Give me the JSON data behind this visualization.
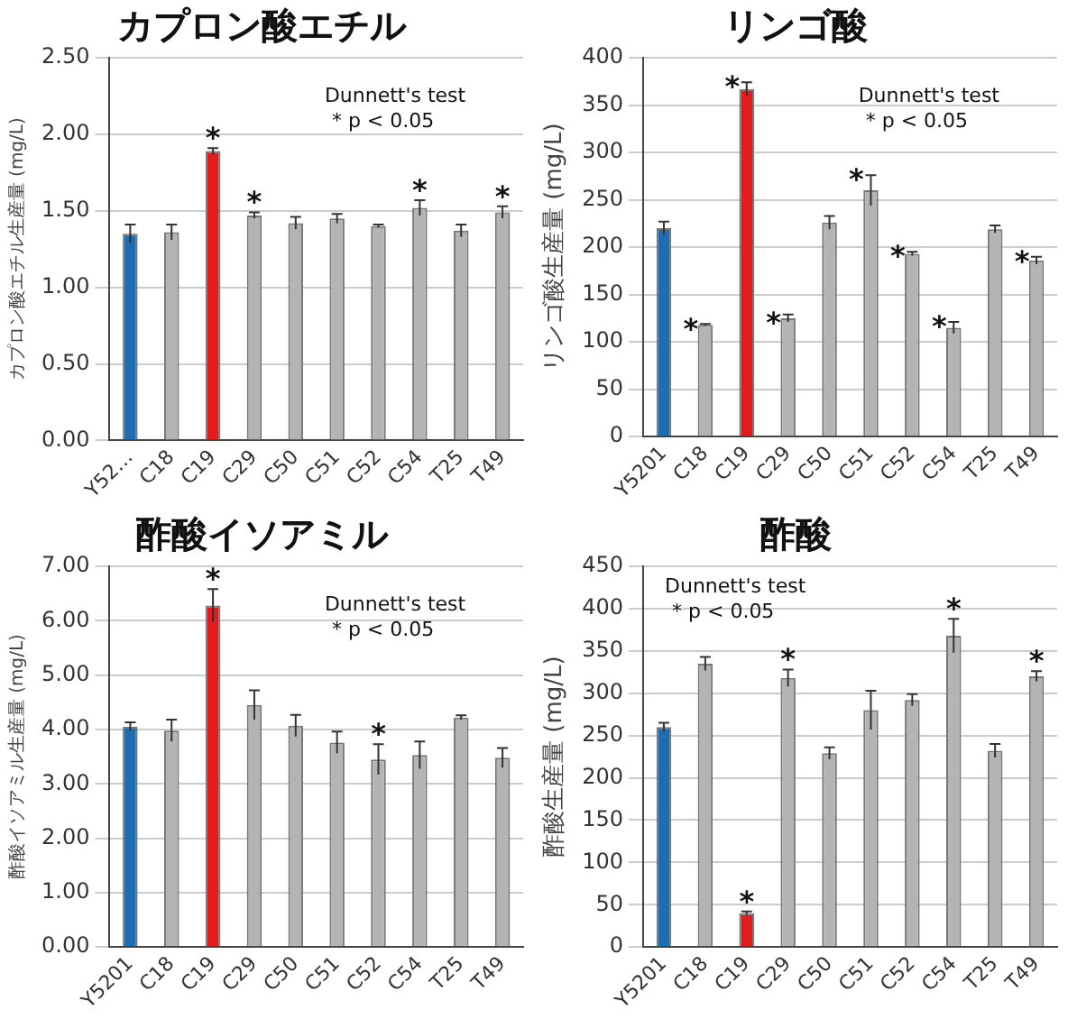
{
  "chart_data": [
    {
      "type": "bar",
      "title": "カプロン酸エチル",
      "ylabel": "カプロン酸エチル生産量 (mg/L)",
      "categories": [
        "Y52…",
        "C18",
        "C19",
        "C29",
        "C50",
        "C51",
        "C52",
        "C54",
        "T25",
        "T49"
      ],
      "values": [
        1.35,
        1.36,
        1.89,
        1.47,
        1.42,
        1.45,
        1.4,
        1.52,
        1.37,
        1.49
      ],
      "colors": [
        "#1f6db0",
        "#b4b4b4",
        "#e01c1c",
        "#b4b4b4",
        "#b4b4b4",
        "#b4b4b4",
        "#b4b4b4",
        "#b4b4b4",
        "#b4b4b4",
        "#b4b4b4"
      ],
      "errors": [
        0.06,
        0.05,
        0.02,
        0.02,
        0.04,
        0.03,
        0.01,
        0.05,
        0.04,
        0.04
      ],
      "ylim": [
        0,
        2.5
      ],
      "yticks": [
        {
          "value": 0,
          "label": "0.00"
        },
        {
          "value": 0.5,
          "label": "0.50"
        },
        {
          "value": 1,
          "label": "1.00"
        },
        {
          "value": 1.5,
          "label": "1.50"
        },
        {
          "value": 2,
          "label": "2.00"
        },
        {
          "value": 2.5,
          "label": "2.50"
        }
      ],
      "grid": "y",
      "legend": false,
      "annotations": [
        "Dunnett's test",
        "* p < 0.05",
        {
          "text": "*",
          "x": "C19",
          "y": 1.91
        },
        {
          "text": "*",
          "x": "C29",
          "y": 1.49
        },
        {
          "text": "*",
          "x": "C54",
          "y": 1.57
        },
        {
          "text": "*",
          "x": "T49",
          "y": 1.53
        }
      ]
    },
    {
      "type": "bar",
      "title": "リンゴ酸",
      "ylabel": "リンゴ酸生産量 (mg/L)",
      "categories": [
        "Y5201",
        "C18",
        "C19",
        "C29",
        "C50",
        "C51",
        "C52",
        "C54",
        "T25",
        "T49"
      ],
      "values": [
        220,
        118,
        367,
        125,
        226,
        260,
        193,
        115,
        219,
        186
      ],
      "colors": [
        "#1f6db0",
        "#b4b4b4",
        "#e01c1c",
        "#b4b4b4",
        "#b4b4b4",
        "#b4b4b4",
        "#b4b4b4",
        "#b4b4b4",
        "#b4b4b4",
        "#b4b4b4"
      ],
      "errors": [
        7,
        1,
        7,
        4,
        7,
        16,
        2,
        6,
        4,
        4
      ],
      "ylim": [
        0,
        400
      ],
      "yticks": [
        0,
        50,
        100,
        150,
        200,
        250,
        300,
        350,
        400
      ],
      "grid": "y",
      "legend": false,
      "annotations": [
        "Dunnett's test",
        "* p < 0.05",
        {
          "text": "*",
          "x": "C18",
          "y": 118
        },
        {
          "text": "*",
          "x": "C19",
          "y": 374
        },
        {
          "text": "*",
          "x": "C29",
          "y": 125
        },
        {
          "text": "*",
          "x": "C51",
          "y": 276
        },
        {
          "text": "*",
          "x": "C52",
          "y": 195
        },
        {
          "text": "*",
          "x": "C54",
          "y": 121
        },
        {
          "text": "*",
          "x": "T49",
          "y": 190
        }
      ]
    },
    {
      "type": "bar",
      "title": "酢酸イソアミル",
      "ylabel": "酢酸イソアミル生産量 (mg/L)",
      "categories": [
        "Y5201",
        "C18",
        "C19",
        "C29",
        "C50",
        "C51",
        "C52",
        "C54",
        "T25",
        "T49"
      ],
      "values": [
        4.05,
        3.98,
        6.28,
        4.45,
        4.07,
        3.76,
        3.45,
        3.53,
        4.22,
        3.48
      ],
      "colors": [
        "#1f6db0",
        "#b4b4b4",
        "#e01c1c",
        "#b4b4b4",
        "#b4b4b4",
        "#b4b4b4",
        "#b4b4b4",
        "#b4b4b4",
        "#b4b4b4",
        "#b4b4b4"
      ],
      "errors": [
        0.08,
        0.2,
        0.3,
        0.27,
        0.2,
        0.2,
        0.28,
        0.25,
        0.04,
        0.18
      ],
      "ylim": [
        0,
        7
      ],
      "yticks": [
        {
          "value": 0,
          "label": "0.00"
        },
        {
          "value": 1,
          "label": "1.00"
        },
        {
          "value": 2,
          "label": "2.00"
        },
        {
          "value": 3,
          "label": "3.00"
        },
        {
          "value": 4,
          "label": "4.00"
        },
        {
          "value": 5,
          "label": "5.00"
        },
        {
          "value": 6,
          "label": "6.00"
        },
        {
          "value": 7,
          "label": "7.00"
        }
      ],
      "grid": "y",
      "legend": false,
      "annotations": [
        "Dunnett's test",
        "* p < 0.05",
        {
          "text": "*",
          "x": "C19",
          "y": 6.58
        },
        {
          "text": "*",
          "x": "C52",
          "y": 3.73
        }
      ]
    },
    {
      "type": "bar",
      "title": "酢酸",
      "ylabel": "酢酸生産量 (mg/L)",
      "categories": [
        "Y5201",
        "C18",
        "C19",
        "C29",
        "C50",
        "C51",
        "C52",
        "C54",
        "T25",
        "T49"
      ],
      "values": [
        260,
        335,
        40,
        318,
        229,
        280,
        292,
        368,
        232,
        320
      ],
      "colors": [
        "#1f6db0",
        "#b4b4b4",
        "#e01c1c",
        "#b4b4b4",
        "#b4b4b4",
        "#b4b4b4",
        "#b4b4b4",
        "#b4b4b4",
        "#b4b4b4",
        "#b4b4b4"
      ],
      "errors": [
        5,
        8,
        2,
        10,
        7,
        23,
        7,
        20,
        8,
        6
      ],
      "ylim": [
        0,
        450
      ],
      "yticks": [
        0,
        50,
        100,
        150,
        200,
        250,
        300,
        350,
        400,
        450
      ],
      "grid": "y",
      "legend": false,
      "annotations": [
        "Dunnett's test",
        "* p < 0.05",
        {
          "text": "*",
          "x": "C19",
          "y": 42
        },
        {
          "text": "*",
          "x": "C29",
          "y": 328
        },
        {
          "text": "*",
          "x": "C54",
          "y": 388
        },
        {
          "text": "*",
          "x": "T49",
          "y": 326
        }
      ]
    }
  ]
}
